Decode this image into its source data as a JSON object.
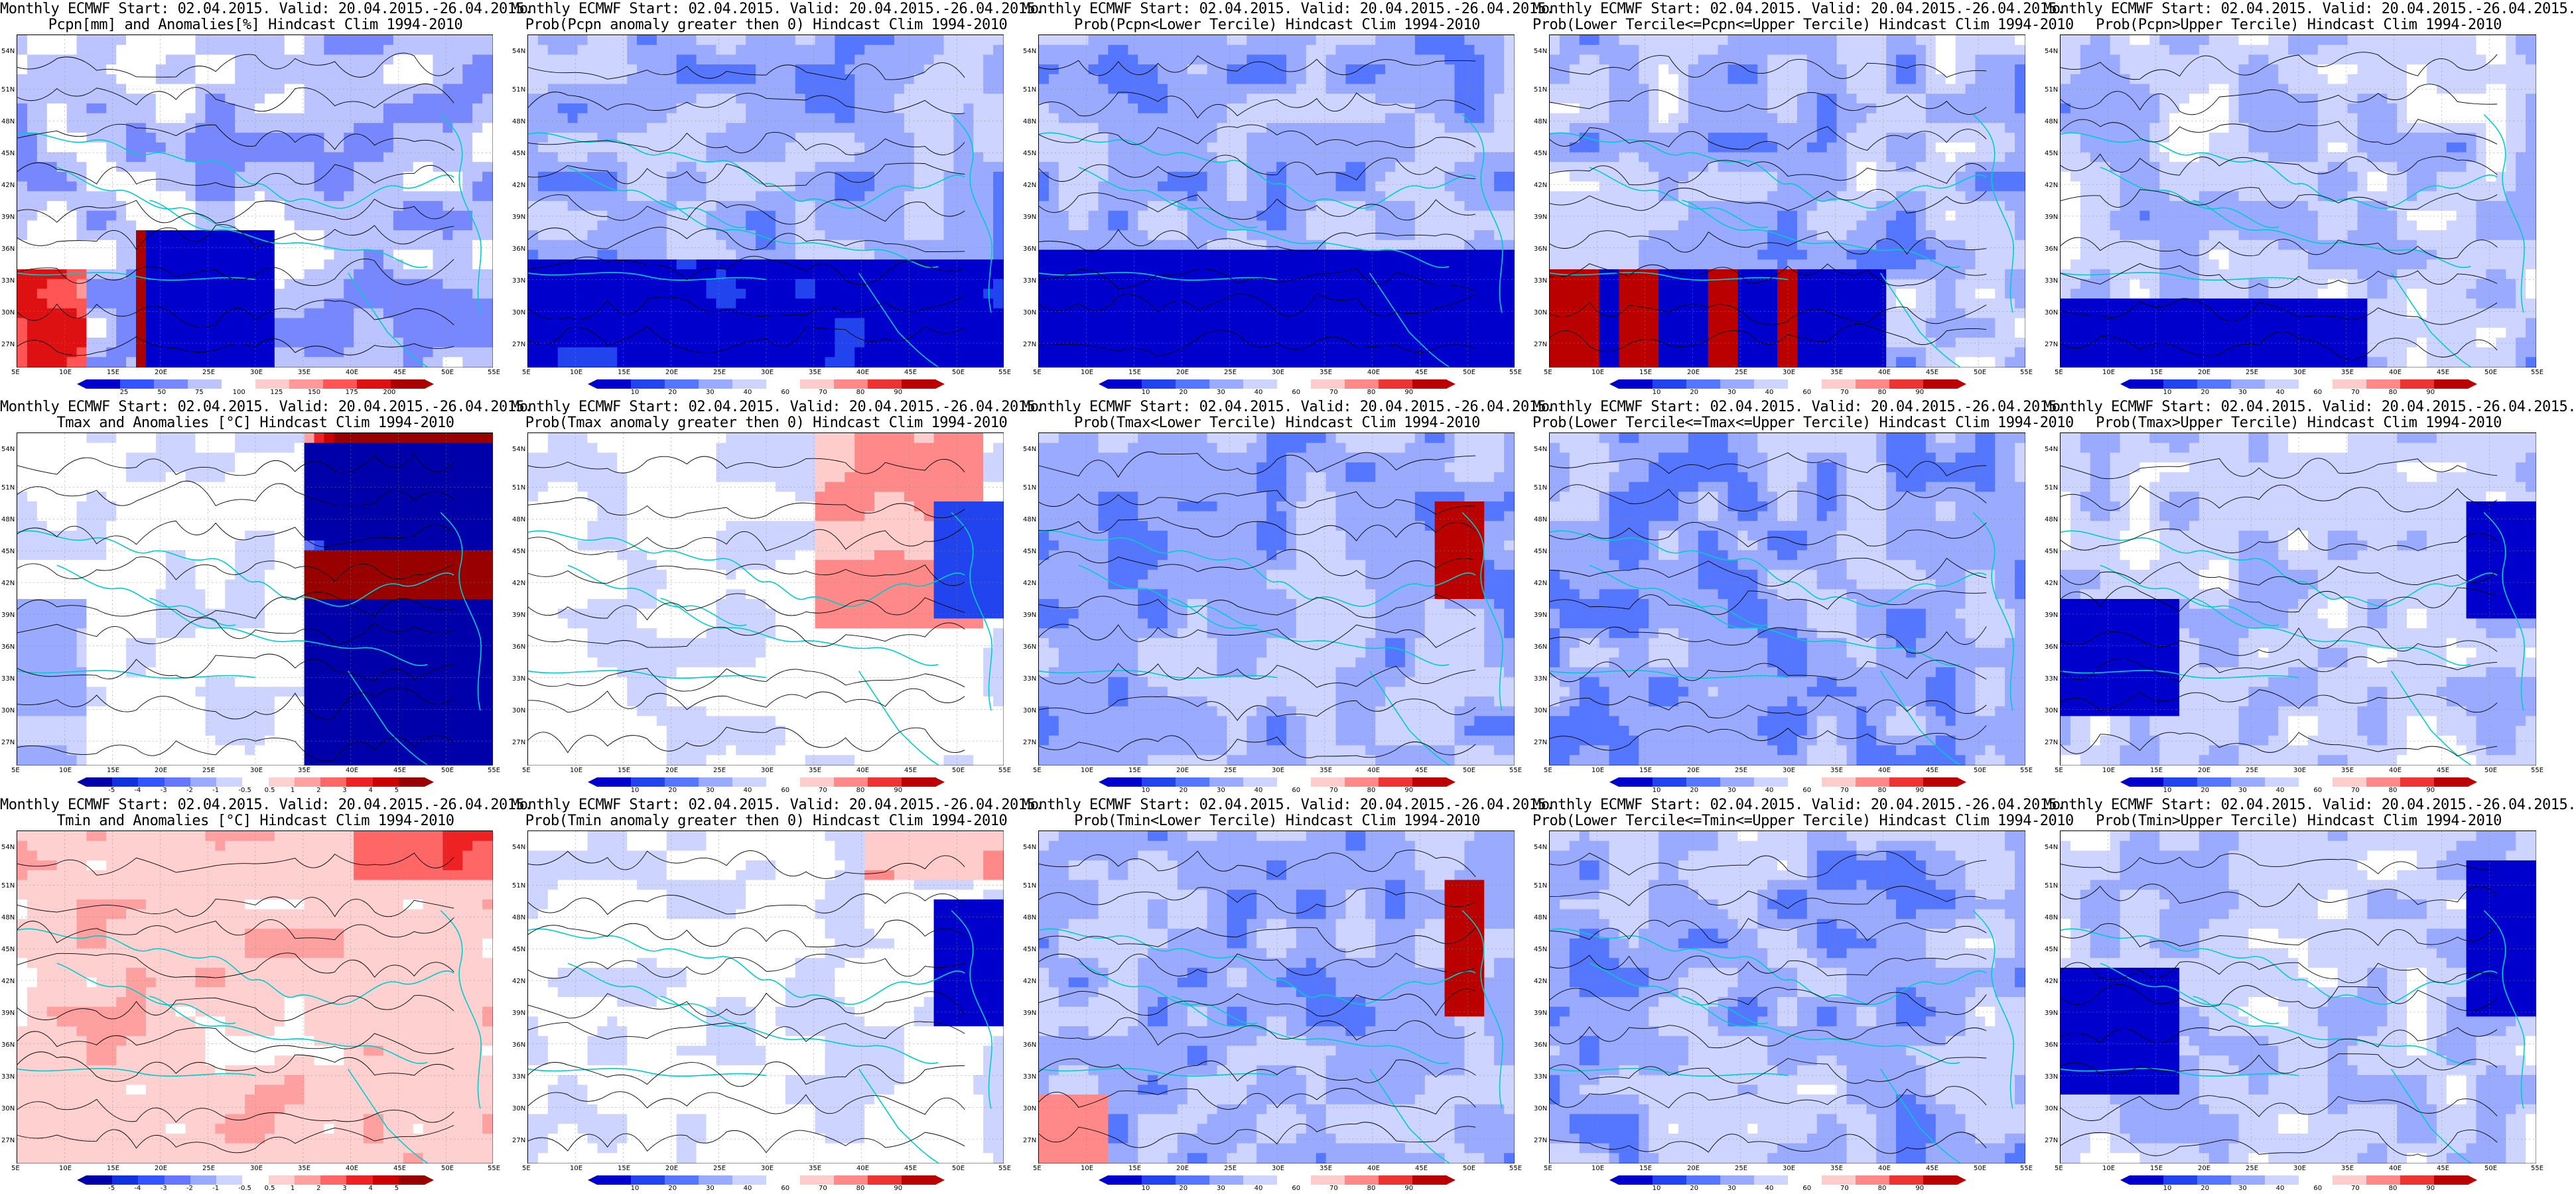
{
  "panels": [
    {
      "id": "p11",
      "title1": "Monthly ECMWF Start: 02.04.2015. Valid: 20.04.2015.-26.04.2015.",
      "title2": "Pcpn[mm] and Anomalies[%] Hindcast Clim 1994-2010",
      "cbar": "anom_pcpn",
      "field": "pcpn_anom"
    },
    {
      "id": "p12",
      "title1": "Monthly ECMWF Start: 02.04.2015. Valid: 20.04.2015.-26.04.2015.",
      "title2": "Prob(Pcpn anomaly greater then 0) Hindcast Clim 1994-2010",
      "cbar": "prob",
      "field": "pcpn_pos"
    },
    {
      "id": "p13",
      "title1": "Monthly ECMWF Start: 02.04.2015. Valid: 20.04.2015.-26.04.2015.",
      "title2": "Prob(Pcpn<Lower Tercile) Hindcast Clim 1994-2010",
      "cbar": "prob",
      "field": "pcpn_low"
    },
    {
      "id": "p14",
      "title1": "Monthly ECMWF Start: 02.04.2015. Valid: 20.04.2015.-26.04.2015.",
      "title2": "Prob(Lower Tercile<=Pcpn<=Upper Tercile) Hindcast Clim 1994-2010",
      "cbar": "prob",
      "field": "pcpn_mid"
    },
    {
      "id": "p15",
      "title1": "Monthly ECMWF Start: 02.04.2015. Valid: 20.04.2015.-26.04.2015.",
      "title2": "Prob(Pcpn>Upper Tercile) Hindcast Clim 1994-2010",
      "cbar": "prob",
      "field": "pcpn_up"
    },
    {
      "id": "p21",
      "title1": "Monthly ECMWF Start: 02.04.2015. Valid: 20.04.2015.-26.04.2015.",
      "title2": "Tmax and Anomalies [°C] Hindcast Clim 1994-2010",
      "cbar": "anom_t",
      "field": "tmax_anom"
    },
    {
      "id": "p22",
      "title1": "Monthly ECMWF Start: 02.04.2015. Valid: 20.04.2015.-26.04.2015.",
      "title2": "Prob(Tmax anomaly greater then 0) Hindcast Clim 1994-2010",
      "cbar": "prob",
      "field": "tmax_pos"
    },
    {
      "id": "p23",
      "title1": "Monthly ECMWF Start: 02.04.2015. Valid: 20.04.2015.-26.04.2015.",
      "title2": "Prob(Tmax<Lower Tercile) Hindcast Clim 1994-2010",
      "cbar": "prob",
      "field": "tmax_low"
    },
    {
      "id": "p24",
      "title1": "Monthly ECMWF Start: 02.04.2015. Valid: 20.04.2015.-26.04.2015.",
      "title2": "Prob(Lower Tercile<=Tmax<=Upper Tercile) Hindcast Clim 1994-2010",
      "cbar": "prob",
      "field": "tmax_mid"
    },
    {
      "id": "p25",
      "title1": "Monthly ECMWF Start: 02.04.2015. Valid: 20.04.2015.-26.04.2015.",
      "title2": "Prob(Tmax>Upper Tercile) Hindcast Clim 1994-2010",
      "cbar": "prob",
      "field": "tmax_up"
    },
    {
      "id": "p31",
      "title1": "Monthly ECMWF Start: 02.04.2015. Valid: 20.04.2015.-26.04.2015.",
      "title2": "Tmin and Anomalies [°C] Hindcast Clim 1994-2010",
      "cbar": "anom_t",
      "field": "tmin_anom"
    },
    {
      "id": "p32",
      "title1": "Monthly ECMWF Start: 02.04.2015. Valid: 20.04.2015.-26.04.2015.",
      "title2": "Prob(Tmin anomaly greater then 0) Hindcast Clim 1994-2010",
      "cbar": "prob",
      "field": "tmin_pos"
    },
    {
      "id": "p33",
      "title1": "Monthly ECMWF Start: 02.04.2015. Valid: 20.04.2015.-26.04.2015.",
      "title2": "Prob(Tmin<Lower Tercile) Hindcast Clim 1994-2010",
      "cbar": "prob",
      "field": "tmin_low"
    },
    {
      "id": "p34",
      "title1": "Monthly ECMWF Start: 02.04.2015. Valid: 20.04.2015.-26.04.2015.",
      "title2": "Prob(Lower Tercile<=Tmin<=Upper Tercile) Hindcast Clim 1994-2010",
      "cbar": "prob",
      "field": "tmin_mid"
    },
    {
      "id": "p35",
      "title1": "Monthly ECMWF Start: 02.04.2015. Valid: 20.04.2015.-26.04.2015.",
      "title2": "Prob(Tmin>Upper Tercile) Hindcast Clim 1994-2010",
      "cbar": "prob",
      "field": "tmin_up"
    }
  ],
  "axes": {
    "lat_labels": [
      "54N",
      "51N",
      "48N",
      "45N",
      "42N",
      "39N",
      "36N",
      "33N",
      "30N",
      "27N"
    ],
    "lon_labels": [
      "5E",
      "10E",
      "15E",
      "20E",
      "25E",
      "30E",
      "35E",
      "40E",
      "45E",
      "50E",
      "55E"
    ]
  },
  "colorbars": {
    "prob": {
      "ticks": [
        "10",
        "20",
        "30",
        "40",
        "60",
        "70",
        "80",
        "90"
      ],
      "colors": [
        "#0000cc",
        "#2244ee",
        "#5577ff",
        "#99aaff",
        "#ccd4ff",
        "#ffffff",
        "#ffcccc",
        "#ff8888",
        "#ee3333",
        "#bb0000"
      ]
    },
    "anom_pcpn": {
      "ticks": [
        "25",
        "50",
        "75",
        "100",
        "125",
        "150",
        "175",
        "200"
      ],
      "colors": [
        "#0000cc",
        "#3355ff",
        "#7788ff",
        "#bbc4ff",
        "#ffffff",
        "#ffcccc",
        "#ff9999",
        "#ff5555",
        "#dd1111",
        "#aa0000"
      ]
    },
    "anom_t": {
      "ticks": [
        "-5",
        "-4",
        "-3",
        "-2",
        "-1",
        "-0.5",
        "0.5",
        "1",
        "2",
        "3",
        "4",
        "5"
      ],
      "colors": [
        "#0000aa",
        "#1133dd",
        "#3355ff",
        "#6677ff",
        "#99aaff",
        "#ccd4ff",
        "#ffffff",
        "#ffd0d0",
        "#ffa0a0",
        "#ff6666",
        "#ee2222",
        "#cc0000",
        "#990000"
      ]
    }
  },
  "colors": {
    "coast": "#00cccc",
    "contour": "#000000",
    "background": "#ffffff"
  }
}
